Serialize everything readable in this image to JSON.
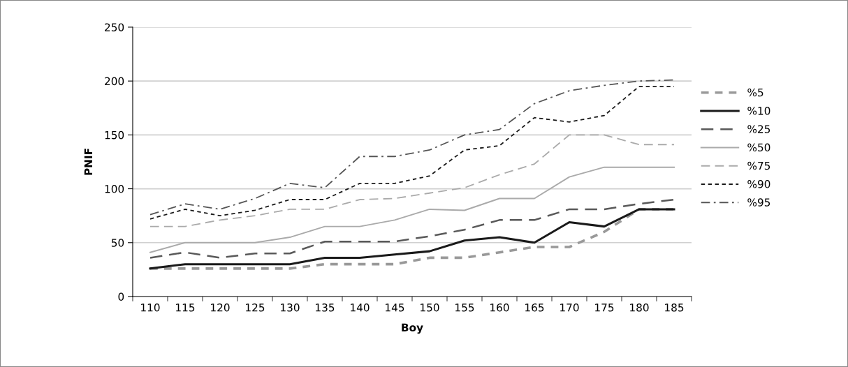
{
  "chart_data": {
    "type": "line",
    "xlabel": "Boy",
    "ylabel": "PNIF",
    "categories": [
      "110",
      "115",
      "120",
      "125",
      "130",
      "135",
      "140",
      "145",
      "150",
      "155",
      "160",
      "165",
      "170",
      "175",
      "180",
      "185"
    ],
    "ylim": [
      0,
      250
    ],
    "yticks": [
      0,
      50,
      100,
      150,
      200,
      250
    ],
    "grid": "y",
    "legend": "right",
    "marker": "none",
    "series": [
      {
        "name": "%5",
        "color": "#999999",
        "line_style": "dashed",
        "values": [
          26,
          26,
          26,
          26,
          26,
          30,
          30,
          30,
          36,
          36,
          41,
          46,
          46,
          60,
          81,
          81
        ]
      },
      {
        "name": "%10",
        "color": "#1a1a1a",
        "line_style": "solid",
        "values": [
          26,
          30,
          30,
          30,
          30,
          36,
          36,
          39,
          42,
          52,
          55,
          50,
          69,
          65,
          81,
          81
        ]
      },
      {
        "name": "%25",
        "color": "#595959",
        "line_style": "long dashed",
        "values": [
          36,
          41,
          36,
          40,
          40,
          51,
          51,
          51,
          56,
          62,
          71,
          71,
          81,
          81,
          86,
          90
        ]
      },
      {
        "name": "%50",
        "color": "#aaaaaa",
        "line_style": "solid",
        "values": [
          41,
          50,
          50,
          50,
          55,
          65,
          65,
          71,
          81,
          80,
          91,
          91,
          111,
          120,
          120,
          120
        ]
      },
      {
        "name": "%75",
        "color": "#aaaaaa",
        "line_style": "long dashed",
        "values": [
          65,
          65,
          71,
          75,
          81,
          81,
          90,
          91,
          96,
          101,
          113,
          123,
          150,
          150,
          141,
          141
        ]
      },
      {
        "name": "%90",
        "color": "#1a1a1a",
        "line_style": "dashed",
        "values": [
          72,
          81,
          75,
          80,
          90,
          90,
          105,
          105,
          112,
          136,
          140,
          166,
          162,
          168,
          195,
          195
        ]
      },
      {
        "name": "%95",
        "color": "#555555",
        "line_style": "dashdot",
        "values": [
          76,
          86,
          81,
          91,
          105,
          101,
          130,
          130,
          136,
          150,
          155,
          179,
          191,
          196,
          200,
          201
        ]
      }
    ]
  }
}
